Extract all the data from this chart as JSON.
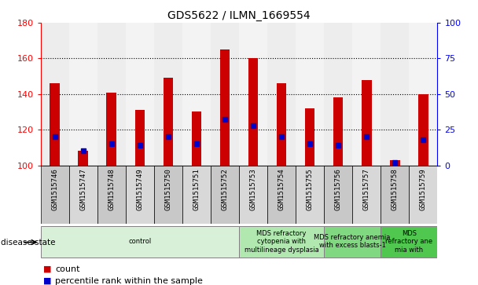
{
  "title": "GDS5622 / ILMN_1669554",
  "samples": [
    "GSM1515746",
    "GSM1515747",
    "GSM1515748",
    "GSM1515749",
    "GSM1515750",
    "GSM1515751",
    "GSM1515752",
    "GSM1515753",
    "GSM1515754",
    "GSM1515755",
    "GSM1515756",
    "GSM1515757",
    "GSM1515758",
    "GSM1515759"
  ],
  "counts": [
    146,
    108,
    141,
    131,
    149,
    130,
    165,
    160,
    146,
    132,
    138,
    148,
    103,
    140
  ],
  "percentiles": [
    20,
    10,
    15,
    14,
    20,
    15,
    32,
    28,
    20,
    15,
    14,
    20,
    2,
    18
  ],
  "ylim_left": [
    100,
    180
  ],
  "ylim_right": [
    0,
    100
  ],
  "yticks_left": [
    100,
    120,
    140,
    160,
    180
  ],
  "yticks_right": [
    0,
    25,
    50,
    75,
    100
  ],
  "bar_color": "#cc0000",
  "percentile_color": "#0000cc",
  "disease_groups": [
    {
      "label": "control",
      "start": 0,
      "end": 7,
      "color": "#d8f0d8"
    },
    {
      "label": "MDS refractory\ncytopenia with\nmultilineage dysplasia",
      "start": 7,
      "end": 10,
      "color": "#b8e8b8"
    },
    {
      "label": "MDS refractory anemia\nwith excess blasts-1",
      "start": 10,
      "end": 12,
      "color": "#80d880"
    },
    {
      "label": "MDS\nrefractory ane\nmia with",
      "start": 12,
      "end": 14,
      "color": "#50c850"
    }
  ],
  "disease_label": "disease state"
}
